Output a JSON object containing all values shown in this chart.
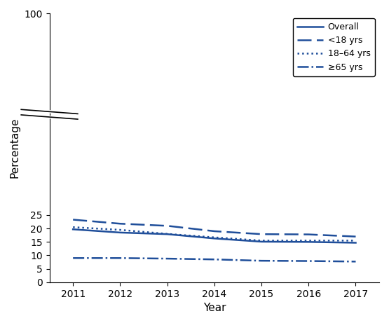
{
  "years": [
    2011,
    2012,
    2013,
    2014,
    2015,
    2016,
    2017
  ],
  "overall": [
    19.7,
    18.5,
    17.9,
    16.3,
    15.1,
    15.0,
    14.7
  ],
  "under18": [
    23.3,
    21.8,
    21.0,
    19.0,
    17.9,
    17.8,
    17.0
  ],
  "age18_64": [
    20.5,
    19.5,
    18.0,
    16.7,
    15.5,
    15.5,
    15.5
  ],
  "age65plus": [
    9.0,
    9.0,
    8.8,
    8.5,
    8.0,
    7.9,
    7.7
  ],
  "line_color": "#1F4E9A",
  "xlabel": "Year",
  "ylabel": "Percentage",
  "ylim": [
    0,
    100
  ],
  "yticks": [
    0,
    5,
    10,
    15,
    20,
    25,
    100
  ],
  "xlim": [
    2010.5,
    2017.5
  ],
  "xticks": [
    2011,
    2012,
    2013,
    2014,
    2015,
    2016,
    2017
  ],
  "legend_labels": [
    "Overall",
    "<18 yrs",
    "18–64 yrs",
    "≥65 yrs"
  ],
  "background_color": "#ffffff"
}
